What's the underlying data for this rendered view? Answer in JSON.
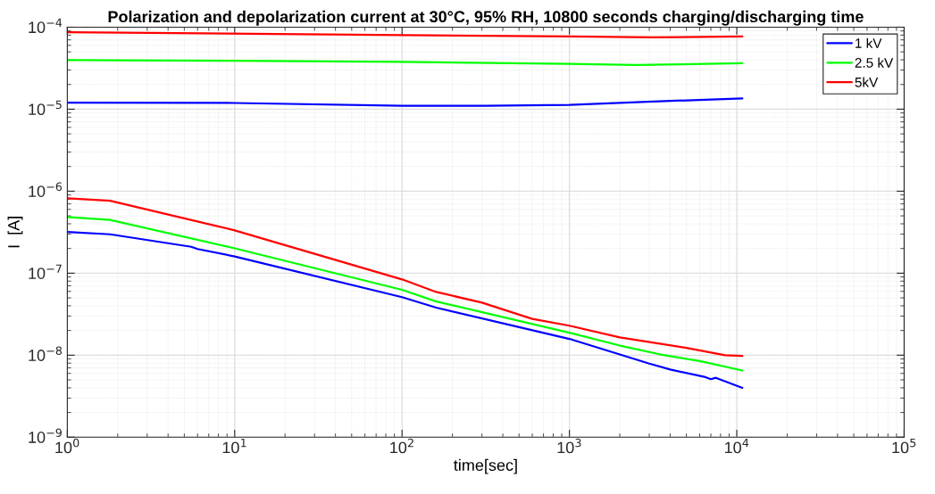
{
  "chart_data": {
    "type": "line",
    "title": "Polarization and depolarization current at 30°C, 95% RH, 10800 seconds charging/discharging time",
    "xlabel": "time[sec]",
    "ylabel": "I  [A]",
    "log": "xy",
    "grid": true,
    "legend": "top right",
    "line_style": "solid",
    "marker": "none",
    "xlim": [
      1,
      100000
    ],
    "ylim": [
      1e-09,
      0.0001
    ],
    "xticks": [
      {
        "value": 1,
        "label": "10$^{0}$"
      },
      {
        "value": 10,
        "label": "10$^{1}$"
      },
      {
        "value": 100,
        "label": "10$^{2}$"
      },
      {
        "value": 1000,
        "label": "10$^{3}$"
      },
      {
        "value": 10000,
        "label": "10$^{4}$"
      },
      {
        "value": 100000,
        "label": "10$^{5}$"
      }
    ],
    "yticks": [
      {
        "value": 1e-09,
        "label": "10$^{−9}$"
      },
      {
        "value": 1e-08,
        "label": "10$^{−8}$"
      },
      {
        "value": 1e-07,
        "label": "10$^{−7}$"
      },
      {
        "value": 1e-06,
        "label": "10$^{−6}$"
      },
      {
        "value": 1e-05,
        "label": "10$^{−5}$"
      },
      {
        "value": 0.0001,
        "label": "10$^{−4}$"
      }
    ],
    "series": [
      {
        "name": "1 kV",
        "color": "#0000ff",
        "x": [
          1,
          10,
          100,
          316,
          1000,
          3162,
          10800
        ],
        "values": [
          1.2e-05,
          1.19e-05,
          1.1e-05,
          1.1e-05,
          1.13e-05,
          1.24e-05,
          1.35e-05
        ]
      },
      {
        "name": "2.5 kV",
        "color": "#00ff00",
        "x": [
          1,
          10,
          100,
          1000,
          2500,
          10800
        ],
        "values": [
          3.96e-05,
          3.9e-05,
          3.77e-05,
          3.57e-05,
          3.45e-05,
          3.64e-05
        ]
      },
      {
        "name": "5kV",
        "color": "#ff0000",
        "x": [
          1,
          100,
          1000,
          3162,
          10800
        ],
        "values": [
          8.7e-05,
          8e-05,
          7.7e-05,
          7.5e-05,
          7.7e-05
        ]
      },
      {
        "color": "#0000ff",
        "x": [
          1,
          1.8,
          5.5,
          6,
          10,
          100,
          160,
          1000,
          2000,
          3000,
          4000,
          6500,
          7000,
          7500,
          10800
        ],
        "values": [
          3.18e-07,
          2.98e-07,
          2.1e-07,
          1.97e-07,
          1.6e-07,
          5.1e-08,
          3.8e-08,
          1.58e-08,
          1.02e-08,
          7.9e-09,
          6.7e-09,
          5.4e-09,
          5.1e-09,
          5.3e-09,
          4e-09
        ]
      },
      {
        "color": "#00ff00",
        "x": [
          1,
          1.8,
          10,
          100,
          160,
          1000,
          2000,
          3500,
          6000,
          10800
        ],
        "values": [
          4.84e-07,
          4.46e-07,
          2.01e-07,
          6.27e-08,
          4.52e-08,
          1.88e-08,
          1.31e-08,
          1.02e-08,
          8.5e-09,
          6.5e-09
        ]
      },
      {
        "color": "#ff0000",
        "x": [
          1,
          1.8,
          10,
          100,
          160,
          300,
          600,
          1000,
          2000,
          5000,
          8500,
          10800
        ],
        "values": [
          8.2e-07,
          7.66e-07,
          3.33e-07,
          8.4e-08,
          5.9e-08,
          4.37e-08,
          2.77e-08,
          2.29e-08,
          1.65e-08,
          1.23e-08,
          1e-08,
          9.8e-09
        ]
      }
    ]
  }
}
